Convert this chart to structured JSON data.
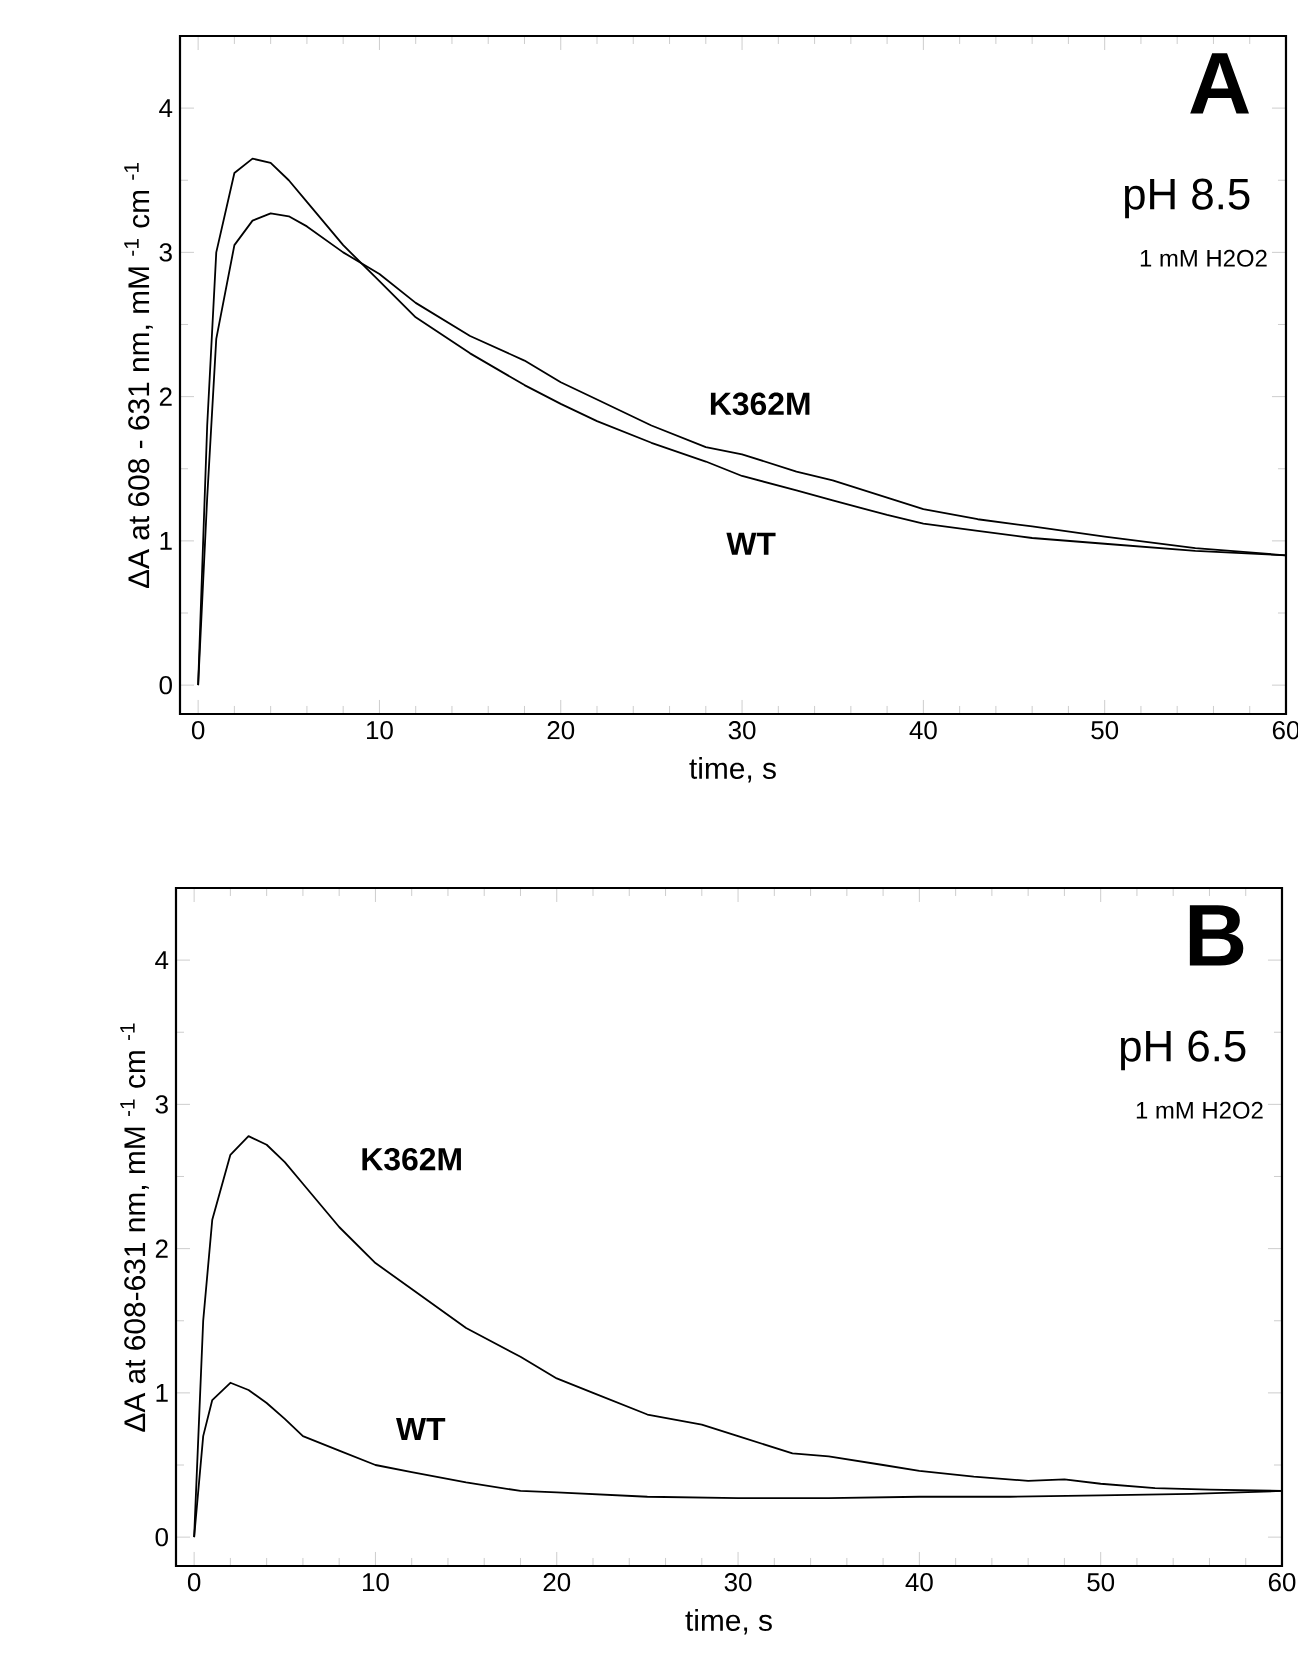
{
  "chart_data": [
    {
      "type": "line",
      "xlabel": "time, s",
      "ylabel": "ΔA  at  608 - 631 nm,  mM $^{-1}$ cm $^{-1}$",
      "annotations": [
        "A",
        "pH 8.5",
        "1 mM H2O2"
      ],
      "xlim": [
        -1,
        60
      ],
      "ylim": [
        -0.2,
        4.5
      ],
      "xticks": [
        0,
        10,
        20,
        30,
        40,
        50,
        60
      ],
      "yticks": [
        0,
        1,
        2,
        3,
        4
      ],
      "marker": "none",
      "line_style": "solid",
      "series": [
        {
          "name": "K362M",
          "color": "#000000",
          "x": [
            0,
            0.5,
            1,
            2,
            3,
            4,
            5,
            6,
            8,
            10,
            12,
            15,
            18,
            20,
            22,
            25,
            28,
            30,
            33,
            35,
            38,
            40,
            43,
            46,
            50,
            55,
            60
          ],
          "values": [
            0,
            1.3,
            2.4,
            3.05,
            3.22,
            3.27,
            3.25,
            3.18,
            3.0,
            2.85,
            2.65,
            2.42,
            2.25,
            2.1,
            1.98,
            1.8,
            1.65,
            1.6,
            1.48,
            1.42,
            1.3,
            1.22,
            1.15,
            1.1,
            1.03,
            0.95,
            0.9
          ]
        },
        {
          "name": "WT",
          "color": "#000000",
          "x": [
            0,
            0.5,
            1,
            2,
            3,
            4,
            5,
            6,
            8,
            10,
            12,
            15,
            18,
            20,
            22,
            25,
            28,
            30,
            33,
            35,
            38,
            40,
            43,
            46,
            50,
            55,
            60
          ],
          "values": [
            0,
            1.8,
            3.0,
            3.55,
            3.65,
            3.62,
            3.5,
            3.35,
            3.05,
            2.8,
            2.55,
            2.3,
            2.08,
            1.95,
            1.83,
            1.68,
            1.55,
            1.45,
            1.35,
            1.28,
            1.18,
            1.12,
            1.07,
            1.02,
            0.98,
            0.93,
            0.9
          ]
        }
      ]
    },
    {
      "type": "line",
      "xlabel": "time, s",
      "ylabel": "ΔA  at  608-631 nm, mM $^{-1}$ cm $^{-1}$",
      "annotations": [
        "B",
        "pH 6.5",
        "1 mM H2O2"
      ],
      "xlim": [
        -1,
        60
      ],
      "ylim": [
        -0.2,
        4.5
      ],
      "xticks": [
        0,
        10,
        20,
        30,
        40,
        50,
        60
      ],
      "yticks": [
        0,
        1,
        2,
        3,
        4
      ],
      "marker": "none",
      "line_style": "solid",
      "series": [
        {
          "name": "K362M",
          "color": "#000000",
          "x": [
            0,
            0.5,
            1,
            2,
            3,
            4,
            5,
            6,
            8,
            10,
            12,
            15,
            18,
            20,
            22,
            25,
            28,
            30,
            33,
            35,
            38,
            40,
            43,
            46,
            48,
            50,
            53,
            56,
            60
          ],
          "values": [
            0,
            1.5,
            2.2,
            2.65,
            2.78,
            2.72,
            2.6,
            2.45,
            2.15,
            1.9,
            1.72,
            1.45,
            1.25,
            1.1,
            1.0,
            0.85,
            0.78,
            0.7,
            0.58,
            0.56,
            0.5,
            0.46,
            0.42,
            0.39,
            0.4,
            0.37,
            0.34,
            0.33,
            0.32
          ]
        },
        {
          "name": "WT",
          "color": "#000000",
          "x": [
            0,
            0.5,
            1,
            2,
            3,
            4,
            5,
            6,
            8,
            10,
            12,
            15,
            18,
            20,
            25,
            30,
            35,
            40,
            45,
            50,
            55,
            60
          ],
          "values": [
            0,
            0.7,
            0.95,
            1.07,
            1.02,
            0.93,
            0.82,
            0.7,
            0.6,
            0.5,
            0.45,
            0.38,
            0.32,
            0.31,
            0.28,
            0.27,
            0.27,
            0.28,
            0.28,
            0.29,
            0.3,
            0.32
          ]
        }
      ]
    }
  ]
}
